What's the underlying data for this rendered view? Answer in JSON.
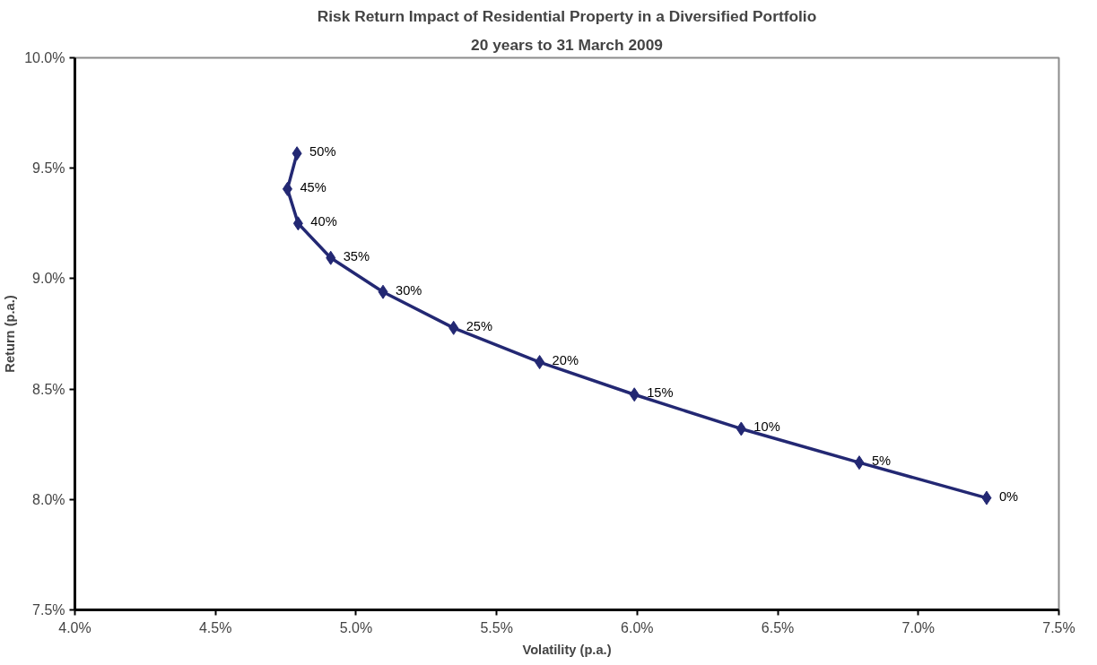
{
  "chart_data": {
    "type": "line",
    "title": "Risk Return Impact of Residential Property in a Diversified Portfolio",
    "subtitle": "20 years to 31 March 2009",
    "xlabel": "Volatility (p.a.)",
    "ylabel": "Return (p.a.)",
    "series": [
      {
        "color": "#232873",
        "x": [
          4.79,
          4.756,
          4.794,
          4.91,
          5.096,
          5.347,
          5.653,
          5.99,
          6.37,
          6.79,
          7.243
        ],
        "values": [
          9.567,
          9.406,
          9.25,
          9.094,
          8.94,
          8.777,
          8.622,
          8.475,
          8.32,
          8.167,
          8.007
        ]
      }
    ],
    "annotations": [
      {
        "text": "50%",
        "x": 4.79,
        "y": 9.567
      },
      {
        "text": "45%",
        "x": 4.756,
        "y": 9.406
      },
      {
        "text": "40%",
        "x": 4.794,
        "y": 9.25
      },
      {
        "text": "35%",
        "x": 4.91,
        "y": 9.094
      },
      {
        "text": "30%",
        "x": 5.096,
        "y": 8.94
      },
      {
        "text": "25%",
        "x": 5.347,
        "y": 8.777
      },
      {
        "text": "20%",
        "x": 5.653,
        "y": 8.622
      },
      {
        "text": "15%",
        "x": 5.99,
        "y": 8.475
      },
      {
        "text": "10%",
        "x": 6.37,
        "y": 8.32
      },
      {
        "text": "5%",
        "x": 6.79,
        "y": 8.167
      },
      {
        "text": "0%",
        "x": 7.243,
        "y": 8.007
      }
    ],
    "xlim": [
      4.0,
      7.5
    ],
    "ylim": [
      7.5,
      10.0
    ],
    "xticks": [
      {
        "value": 4.0,
        "label": "4.0%"
      },
      {
        "value": 4.5,
        "label": "4.5%"
      },
      {
        "value": 5.0,
        "label": "5.0%"
      },
      {
        "value": 5.5,
        "label": "5.5%"
      },
      {
        "value": 6.0,
        "label": "6.0%"
      },
      {
        "value": 6.5,
        "label": "6.5%"
      },
      {
        "value": 7.0,
        "label": "7.0%"
      },
      {
        "value": 7.5,
        "label": "7.5%"
      }
    ],
    "yticks": [
      {
        "value": 7.5,
        "label": "7.5%"
      },
      {
        "value": 8.0,
        "label": "8.0%"
      },
      {
        "value": 8.5,
        "label": "8.5%"
      },
      {
        "value": 9.0,
        "label": "9.0%"
      },
      {
        "value": 9.5,
        "label": "9.5%"
      },
      {
        "value": 10.0,
        "label": "10.0%"
      }
    ],
    "marker": "diamond",
    "line_style": "solid",
    "grid": false
  }
}
